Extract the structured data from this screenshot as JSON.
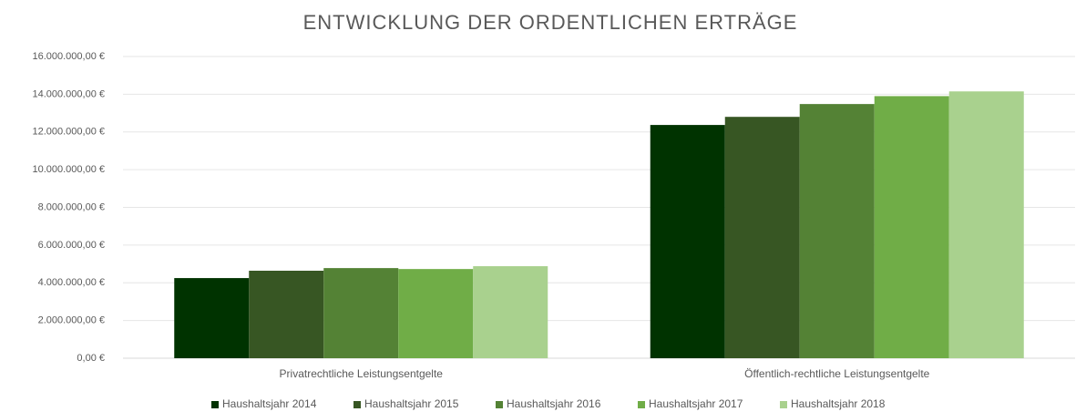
{
  "chart_data": {
    "type": "bar",
    "title": "ENTWICKLUNG DER ORDENTLICHEN ERTRÄGE",
    "categories": [
      "Privatrechtliche Leistungsentgelte",
      "Öffentlich-rechtliche Leistungsentgelte"
    ],
    "series": [
      {
        "name": "Haushaltsjahr 2014",
        "color": "#003300",
        "values": [
          4250000,
          12370000
        ]
      },
      {
        "name": "Haushaltsjahr 2015",
        "color": "#375623",
        "values": [
          4640000,
          12800000
        ]
      },
      {
        "name": "Haushaltsjahr 2016",
        "color": "#548235",
        "values": [
          4780000,
          13480000
        ]
      },
      {
        "name": "Haushaltsjahr 2017",
        "color": "#70ad47",
        "values": [
          4730000,
          13900000
        ]
      },
      {
        "name": "Haushaltsjahr 2018",
        "color": "#a9d18e",
        "values": [
          4880000,
          14150000
        ]
      }
    ],
    "ylim": [
      0,
      16000000
    ],
    "yticks": [
      {
        "value": 0,
        "label": "0,00 €"
      },
      {
        "value": 2000000,
        "label": "2.000.000,00 €"
      },
      {
        "value": 4000000,
        "label": "4.000.000,00 €"
      },
      {
        "value": 6000000,
        "label": "6.000.000,00 €"
      },
      {
        "value": 8000000,
        "label": "8.000.000,00 €"
      },
      {
        "value": 10000000,
        "label": "10.000.000,00 €"
      },
      {
        "value": 12000000,
        "label": "12.000.000,00 €"
      },
      {
        "value": 14000000,
        "label": "14.000.000,00 €"
      },
      {
        "value": 16000000,
        "label": "16.000.000,00 €"
      }
    ],
    "grid": true,
    "legend": "bottom"
  }
}
